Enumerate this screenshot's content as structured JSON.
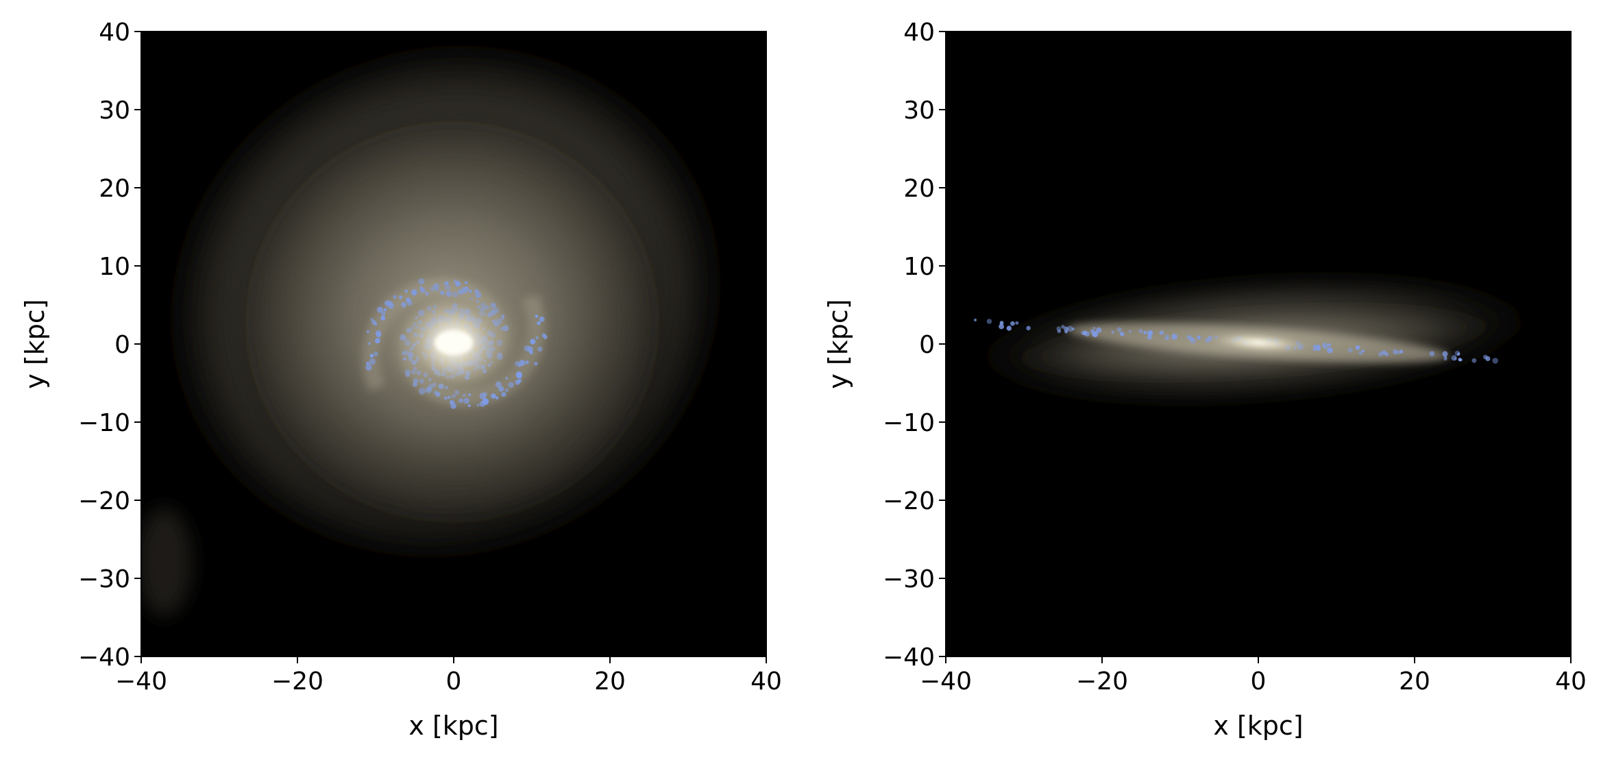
{
  "chart_data": [
    {
      "type": "image",
      "title": "",
      "xlabel": "x [kpc]",
      "ylabel": "y [kpc]",
      "xlim": [
        -40,
        40
      ],
      "ylim": [
        -40,
        40
      ],
      "xticks": [
        -40,
        -20,
        0,
        20,
        40
      ],
      "yticks": [
        -40,
        -30,
        -20,
        -10,
        0,
        10,
        20,
        30,
        40
      ],
      "xtick_labels": [
        "−40",
        "−20",
        "0",
        "20",
        "40"
      ],
      "ytick_labels": [
        "−40",
        "−30",
        "−20",
        "−10",
        "0",
        "10",
        "20",
        "30",
        "40"
      ],
      "grid": false,
      "background_color": "#000000",
      "stars_color": "#b8b3a0",
      "young_stars_color": "#7f9ce8",
      "view": "face-on spiral galaxy"
    },
    {
      "type": "image",
      "title": "",
      "xlabel": "x [kpc]",
      "ylabel": "y [kpc]",
      "xlim": [
        -40,
        40
      ],
      "ylim": [
        -40,
        40
      ],
      "xticks": [
        -40,
        -20,
        0,
        20,
        40
      ],
      "yticks": [
        -40,
        -30,
        -20,
        -10,
        0,
        10,
        20,
        30,
        40
      ],
      "xtick_labels": [
        "−40",
        "−20",
        "0",
        "20",
        "40"
      ],
      "ytick_labels": [
        "−40",
        "−30",
        "−20",
        "−10",
        "0",
        "10",
        "20",
        "30",
        "40"
      ],
      "grid": false,
      "background_color": "#000000",
      "stars_color": "#b8b3a0",
      "young_stars_color": "#7f9ce8",
      "view": "edge-on galaxy disk"
    }
  ]
}
